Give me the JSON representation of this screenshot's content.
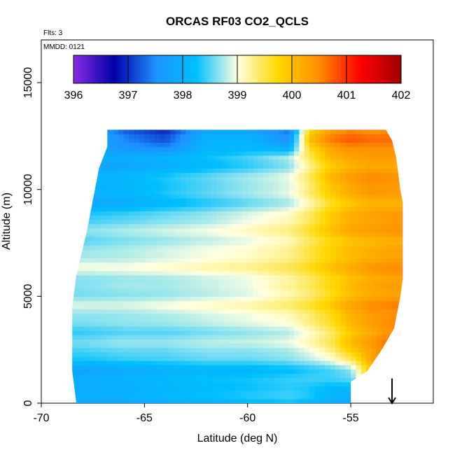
{
  "chart_data": {
    "type": "heatmap",
    "title": "ORCAS RF03 CO2_QCLS",
    "annotations": [
      "Flts: 3",
      "MMDD: 0121"
    ],
    "xlabel": "Latitude (deg N)",
    "ylabel": "Altitude (m)",
    "xlim": [
      -70,
      -51
    ],
    "ylim": [
      0,
      17000
    ],
    "x_ticks": [
      -70,
      -65,
      -60,
      -55
    ],
    "y_ticks": [
      0,
      5000,
      10000,
      15000
    ],
    "colorbar": {
      "min": 396,
      "max": 402,
      "ticks": [
        396,
        397,
        398,
        399,
        400,
        401,
        402
      ],
      "colors": [
        "#8a2be2",
        "#0000a8",
        "#1e90ff",
        "#00bfff",
        "#ffffe0",
        "#ffd700",
        "#ff8c00",
        "#ff0000",
        "#a00000"
      ]
    },
    "marker_arrow": {
      "latitude": -53,
      "altitude_top": 700,
      "altitude_bottom": 0
    },
    "coverage": {
      "lat_min": -68.5,
      "lat_max": -52.5,
      "alt_min": 0,
      "alt_max": 12800,
      "lat_right_edge_by_alt": [
        [
          0,
          -55
        ],
        [
          1000,
          -55
        ],
        [
          1500,
          -54.2
        ],
        [
          2500,
          -53.5
        ],
        [
          3500,
          -52.9
        ],
        [
          5000,
          -52.6
        ],
        [
          7000,
          -52.3
        ],
        [
          8500,
          -52.3
        ],
        [
          10000,
          -52.6
        ],
        [
          11500,
          -52.8
        ],
        [
          12300,
          -53
        ],
        [
          12800,
          -53.3
        ]
      ],
      "lat_left_edge_by_alt": [
        [
          0,
          -68.3
        ],
        [
          1500,
          -68.5
        ],
        [
          3000,
          -68.8
        ],
        [
          4500,
          -68.5
        ],
        [
          6000,
          -68.3
        ],
        [
          8000,
          -67.8
        ],
        [
          9500,
          -67.5
        ],
        [
          11000,
          -67.2
        ],
        [
          12000,
          -66.8
        ]
      ]
    },
    "representative_field": {
      "description_of_values": "CO2 mixing ratio (ppm) on latitude x altitude grid",
      "latitudes": [
        -68,
        -66,
        -64,
        -62,
        -60,
        -58,
        -57,
        -56,
        -55,
        -54,
        -53
      ],
      "altitudes": [
        500,
        1500,
        2500,
        3500,
        4500,
        5500,
        6500,
        7500,
        8500,
        9500,
        10500,
        11500,
        12300
      ],
      "values": [
        [
          397.9,
          397.9,
          398.0,
          398.1,
          398.2,
          398.3,
          398.2,
          398.0,
          397.9,
          null,
          null
        ],
        [
          398.0,
          398.1,
          398.2,
          398.3,
          398.3,
          398.4,
          398.5,
          398.6,
          398.8,
          null,
          null
        ],
        [
          398.4,
          398.5,
          398.5,
          398.6,
          398.6,
          398.7,
          398.9,
          399.2,
          399.8,
          400.2,
          null
        ],
        [
          398.6,
          398.7,
          398.7,
          398.8,
          398.9,
          399.0,
          399.3,
          399.6,
          400.1,
          400.4,
          400.6
        ],
        [
          398.7,
          398.7,
          398.8,
          398.9,
          399.0,
          399.2,
          399.4,
          399.7,
          400.1,
          400.3,
          400.4
        ],
        [
          398.7,
          398.8,
          398.8,
          398.9,
          399.0,
          399.3,
          399.5,
          399.8,
          400.1,
          400.3,
          400.4
        ],
        [
          398.8,
          398.8,
          398.9,
          399.0,
          399.1,
          399.3,
          399.5,
          399.8,
          400.0,
          400.2,
          400.3
        ],
        [
          398.7,
          398.8,
          398.9,
          399.0,
          399.1,
          399.3,
          399.6,
          399.9,
          400.1,
          400.2,
          400.3
        ],
        [
          398.4,
          398.5,
          398.6,
          398.7,
          398.9,
          399.1,
          399.4,
          399.8,
          400.1,
          400.2,
          400.3
        ],
        [
          398.0,
          398.1,
          398.3,
          398.5,
          398.7,
          398.9,
          399.3,
          399.8,
          400.1,
          400.3,
          400.3
        ],
        [
          397.9,
          398.0,
          398.2,
          398.4,
          398.6,
          398.8,
          399.3,
          399.9,
          400.2,
          400.4,
          null
        ],
        [
          398.0,
          398.0,
          398.1,
          398.3,
          398.5,
          398.8,
          399.5,
          400.1,
          400.3,
          400.4,
          null
        ],
        [
          null,
          397.3,
          397.0,
          397.9,
          397.9,
          397.4,
          399.8,
          400.4,
          400.6,
          400.5,
          null
        ]
      ]
    }
  }
}
